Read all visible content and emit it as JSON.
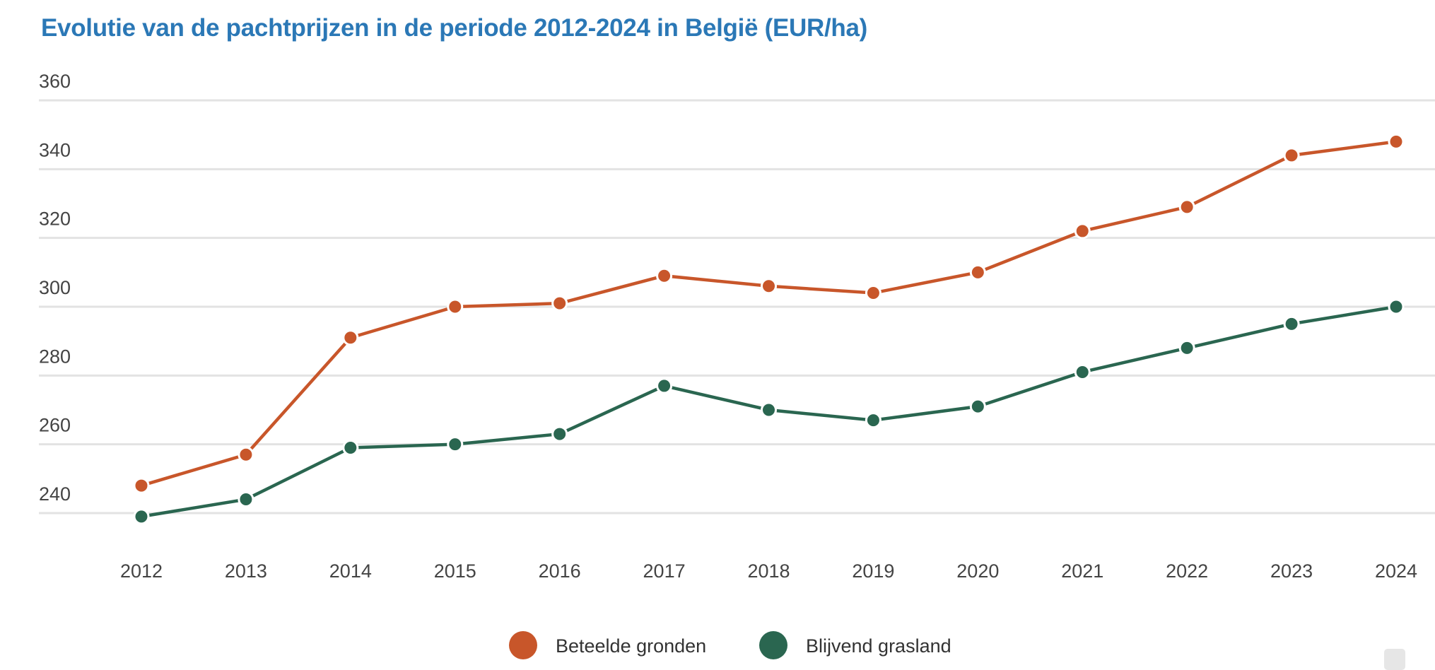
{
  "chart_data": {
    "type": "line",
    "title": "Evolutie van de pachtprijzen in de periode 2012-2024 in België (EUR/ha)",
    "xlabel": "",
    "ylabel": "",
    "x": [
      "2012",
      "2013",
      "2014",
      "2015",
      "2016",
      "2017",
      "2018",
      "2019",
      "2020",
      "2021",
      "2022",
      "2023",
      "2024"
    ],
    "yticks": [
      240,
      260,
      280,
      300,
      320,
      340,
      360
    ],
    "ylim": [
      240,
      360
    ],
    "grid": true,
    "legend_position": "bottom",
    "series": [
      {
        "name": "Beteelde gronden",
        "color": "#c8562a",
        "values": [
          248,
          257,
          291,
          300,
          301,
          309,
          306,
          304,
          310,
          322,
          329,
          344,
          348
        ]
      },
      {
        "name": "Blijvend grasland",
        "color": "#2a6650",
        "values": [
          239,
          244,
          259,
          260,
          263,
          277,
          270,
          267,
          271,
          281,
          288,
          295,
          300
        ]
      }
    ]
  }
}
